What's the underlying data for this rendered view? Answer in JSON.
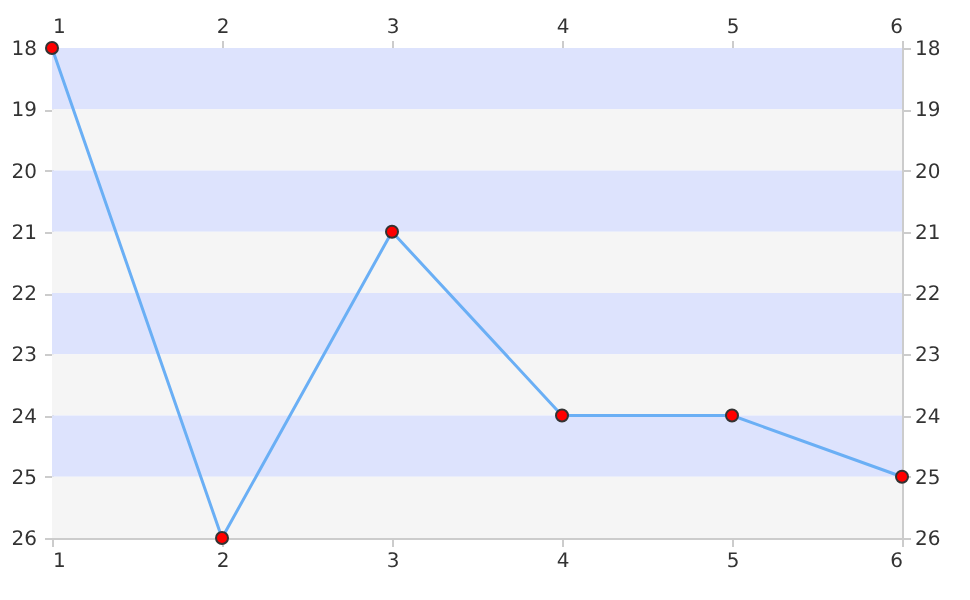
{
  "chart_data": {
    "type": "line",
    "x": [
      1,
      2,
      3,
      4,
      5,
      6
    ],
    "series": [
      {
        "color": "#6aaff5",
        "values": [
          18,
          26,
          21,
          24,
          24,
          25
        ]
      }
    ],
    "xlim": [
      1,
      6
    ],
    "xticks": [
      1,
      2,
      3,
      4,
      5,
      6
    ],
    "x2lim": [
      1,
      6
    ],
    "x2ticks": [
      1,
      2,
      3,
      4,
      5,
      6
    ],
    "ylim": [
      26,
      18
    ],
    "yticks": [
      18,
      19,
      20,
      21,
      22,
      23,
      24,
      25,
      26
    ],
    "y2lim": [
      26,
      18
    ],
    "y2ticks": [
      18,
      19,
      20,
      21,
      22,
      23,
      24,
      25,
      26
    ],
    "bands": [
      {
        "axis": "y",
        "from": 18,
        "to": 19,
        "color": "#dde3fd"
      },
      {
        "axis": "y",
        "from": 19,
        "to": 20,
        "color": "#f5f5f5"
      },
      {
        "axis": "y",
        "from": 20,
        "to": 21,
        "color": "#dde3fd"
      },
      {
        "axis": "y",
        "from": 21,
        "to": 22,
        "color": "#f5f5f5"
      },
      {
        "axis": "y",
        "from": 22,
        "to": 23,
        "color": "#dde3fd"
      },
      {
        "axis": "y",
        "from": 23,
        "to": 24,
        "color": "#f5f5f5"
      },
      {
        "axis": "y",
        "from": 24,
        "to": 25,
        "color": "#dde3fd"
      },
      {
        "axis": "y",
        "from": 25,
        "to": 26,
        "color": "#f5f5f5"
      }
    ],
    "grid": false,
    "marker": "circle",
    "line_style": "solid"
  }
}
